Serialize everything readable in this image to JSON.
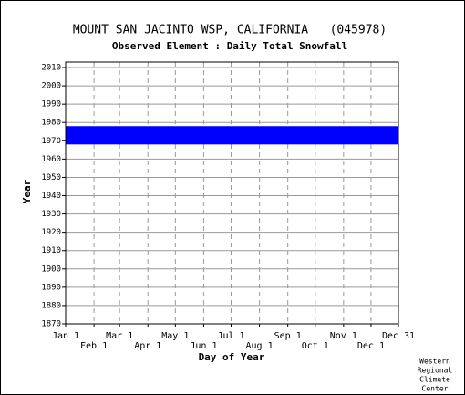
{
  "chart_data": {
    "type": "band",
    "title": "MOUNT SAN JACINTO WSP, CALIFORNIA   (045978)",
    "subtitle": "Observed Element : Daily Total Snowfall",
    "x_label": "Day of Year",
    "y_label": "Year",
    "credit": [
      "Western",
      "Regional",
      "Climate",
      "Center"
    ],
    "color": "#0000ff",
    "band": [
      1968,
      1978
    ],
    "xlim": [
      1,
      365
    ],
    "xticks": [
      {
        "value": 1,
        "label": "Jan 1"
      },
      {
        "value": 32,
        "label": "Feb 1"
      },
      {
        "value": 60,
        "label": "Mar 1"
      },
      {
        "value": 91,
        "label": "Apr 1"
      },
      {
        "value": 121,
        "label": "May 1"
      },
      {
        "value": 152,
        "label": "Jun 1"
      },
      {
        "value": 182,
        "label": "Jul 1"
      },
      {
        "value": 213,
        "label": "Aug 1"
      },
      {
        "value": 244,
        "label": "Sep 1"
      },
      {
        "value": 274,
        "label": "Oct 1"
      },
      {
        "value": 305,
        "label": "Nov 1"
      },
      {
        "value": 335,
        "label": "Dec 1"
      },
      {
        "value": 365,
        "label": "Dec 31"
      }
    ],
    "ylim": [
      1870,
      2013
    ],
    "yticks": [
      1870,
      1880,
      1890,
      1900,
      1910,
      1920,
      1930,
      1940,
      1950,
      1960,
      1970,
      1980,
      1990,
      2000,
      2010
    ],
    "grid": true
  }
}
